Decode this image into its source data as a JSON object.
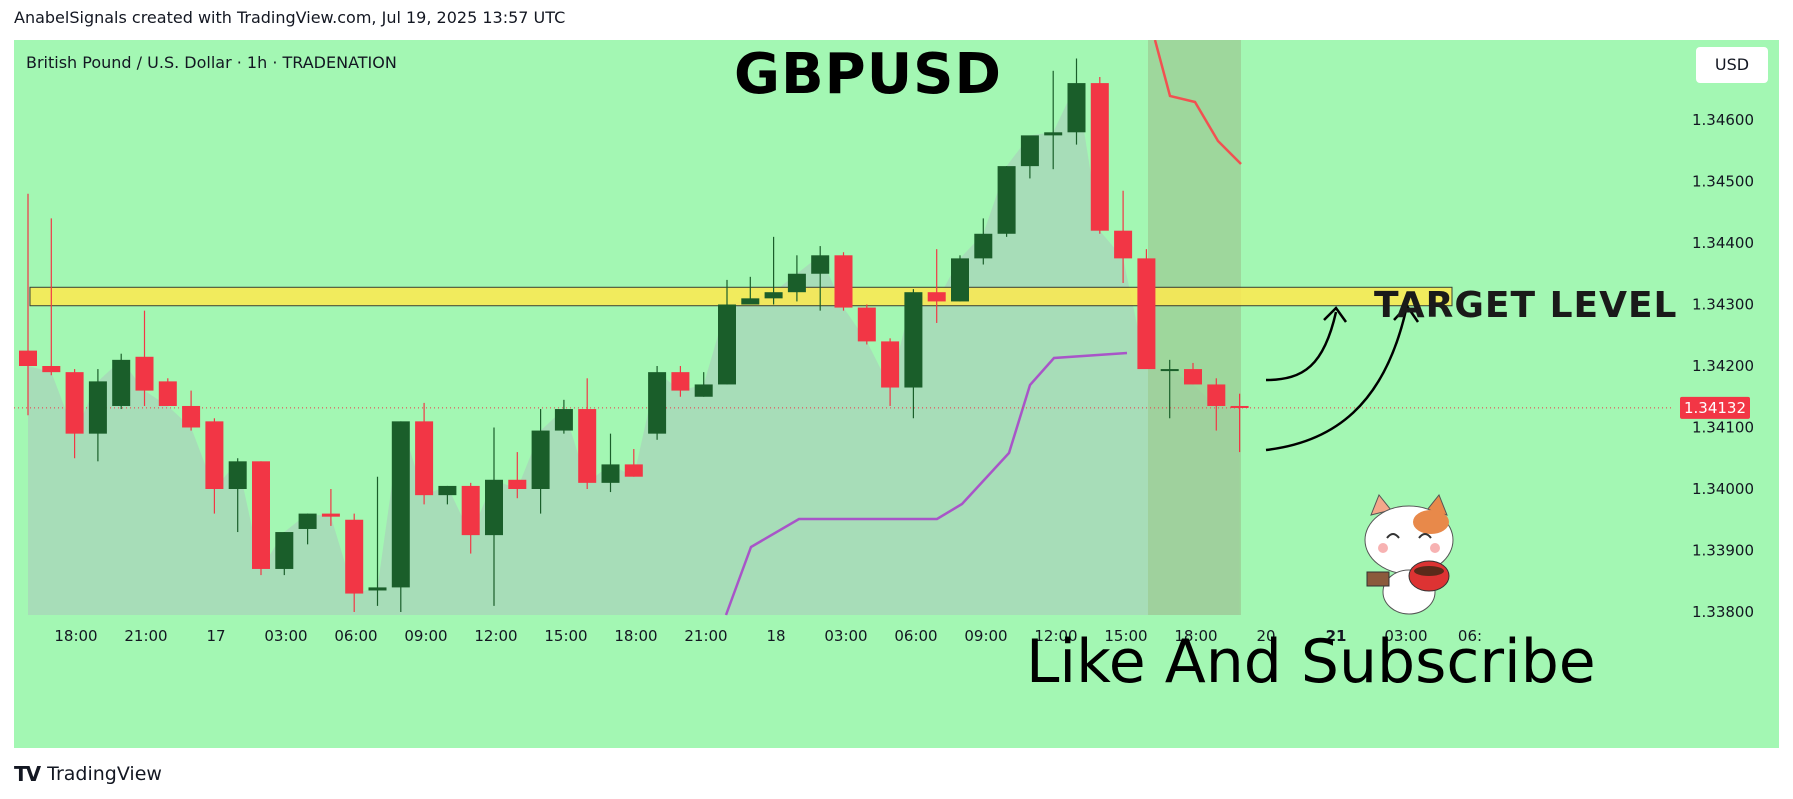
{
  "caption": "AnabelSignals created with TradingView.com, Jul 19, 2025 13:57 UTC",
  "symbol_info": "British Pound / U.S. Dollar · 1h · TRADENATION",
  "title": "GBPUSD",
  "currency_label": "USD",
  "target_label": "TARGET LEVEL",
  "subscribe_text": "Like And Subscribe",
  "footer_brand": "TradingView",
  "colors": {
    "background": "#a3f7b3",
    "bull": "#1a5e2a",
    "bear": "#f23645",
    "target_zone": "#ffe94f",
    "support_line": "#a855c8",
    "resistance_line": "#f25151",
    "price_label_bg": "#f23645"
  },
  "chart_data": {
    "type": "candlestick",
    "interval": "1h",
    "ylim": [
      1.338,
      1.3468
    ],
    "y_ticks": [
      "1.34600",
      "1.34500",
      "1.34400",
      "1.34300",
      "1.34200",
      "1.34100",
      "1.34000",
      "1.33900",
      "1.33800"
    ],
    "x_ticks": [
      "18:00",
      "21:00",
      "17",
      "03:00",
      "06:00",
      "09:00",
      "12:00",
      "15:00",
      "18:00",
      "21:00",
      "18",
      "03:00",
      "06:00",
      "09:00",
      "12:00",
      "15:00",
      "18:00",
      "20",
      "21",
      "03:00",
      "06:"
    ],
    "last_price": "1.34132",
    "target_zone": [
      1.34298,
      1.34328
    ],
    "candles": [
      {
        "o": 1.34225,
        "h": 1.3448,
        "l": 1.3412,
        "c": 1.342
      },
      {
        "o": 1.342,
        "h": 1.3444,
        "l": 1.34185,
        "c": 1.3419
      },
      {
        "o": 1.3419,
        "h": 1.34195,
        "l": 1.3405,
        "c": 1.3409
      },
      {
        "o": 1.3409,
        "h": 1.34195,
        "l": 1.34045,
        "c": 1.34175
      },
      {
        "o": 1.34135,
        "h": 1.3422,
        "l": 1.3413,
        "c": 1.3421
      },
      {
        "o": 1.34215,
        "h": 1.3429,
        "l": 1.34135,
        "c": 1.3416
      },
      {
        "o": 1.34175,
        "h": 1.3418,
        "l": 1.34135,
        "c": 1.34135
      },
      {
        "o": 1.34135,
        "h": 1.3416,
        "l": 1.34095,
        "c": 1.341
      },
      {
        "o": 1.3411,
        "h": 1.34115,
        "l": 1.3396,
        "c": 1.34
      },
      {
        "o": 1.34,
        "h": 1.3405,
        "l": 1.3393,
        "c": 1.34045
      },
      {
        "o": 1.34045,
        "h": 1.34045,
        "l": 1.3386,
        "c": 1.3387
      },
      {
        "o": 1.3387,
        "h": 1.3393,
        "l": 1.3386,
        "c": 1.3393
      },
      {
        "o": 1.33935,
        "h": 1.3396,
        "l": 1.3391,
        "c": 1.3396
      },
      {
        "o": 1.3396,
        "h": 1.34,
        "l": 1.3394,
        "c": 1.33955
      },
      {
        "o": 1.3395,
        "h": 1.3396,
        "l": 1.338,
        "c": 1.3383
      },
      {
        "o": 1.33835,
        "h": 1.3402,
        "l": 1.3381,
        "c": 1.3384
      },
      {
        "o": 1.3384,
        "h": 1.3411,
        "l": 1.338,
        "c": 1.3411
      },
      {
        "o": 1.3411,
        "h": 1.3414,
        "l": 1.33975,
        "c": 1.3399
      },
      {
        "o": 1.3399,
        "h": 1.34005,
        "l": 1.33975,
        "c": 1.34005
      },
      {
        "o": 1.34005,
        "h": 1.3401,
        "l": 1.33895,
        "c": 1.33925
      },
      {
        "o": 1.33925,
        "h": 1.341,
        "l": 1.3381,
        "c": 1.34015
      },
      {
        "o": 1.34015,
        "h": 1.3406,
        "l": 1.33985,
        "c": 1.34
      },
      {
        "o": 1.34,
        "h": 1.3413,
        "l": 1.3396,
        "c": 1.34095
      },
      {
        "o": 1.34095,
        "h": 1.34145,
        "l": 1.3409,
        "c": 1.3413
      },
      {
        "o": 1.3413,
        "h": 1.3418,
        "l": 1.34,
        "c": 1.3401
      },
      {
        "o": 1.3401,
        "h": 1.3409,
        "l": 1.33995,
        "c": 1.3404
      },
      {
        "o": 1.3404,
        "h": 1.34065,
        "l": 1.3402,
        "c": 1.3402
      },
      {
        "o": 1.3409,
        "h": 1.342,
        "l": 1.3408,
        "c": 1.3419
      },
      {
        "o": 1.3419,
        "h": 1.342,
        "l": 1.3415,
        "c": 1.3416
      },
      {
        "o": 1.3415,
        "h": 1.3419,
        "l": 1.3415,
        "c": 1.3417
      },
      {
        "o": 1.3417,
        "h": 1.3434,
        "l": 1.3417,
        "c": 1.343
      },
      {
        "o": 1.343,
        "h": 1.34345,
        "l": 1.343,
        "c": 1.3431
      },
      {
        "o": 1.3431,
        "h": 1.3441,
        "l": 1.343,
        "c": 1.3432
      },
      {
        "o": 1.3432,
        "h": 1.3438,
        "l": 1.34305,
        "c": 1.3435
      },
      {
        "o": 1.3435,
        "h": 1.34395,
        "l": 1.3429,
        "c": 1.3438
      },
      {
        "o": 1.3438,
        "h": 1.34385,
        "l": 1.3429,
        "c": 1.34295
      },
      {
        "o": 1.34295,
        "h": 1.343,
        "l": 1.34235,
        "c": 1.3424
      },
      {
        "o": 1.3424,
        "h": 1.34245,
        "l": 1.34135,
        "c": 1.34165
      },
      {
        "o": 1.34165,
        "h": 1.34325,
        "l": 1.34115,
        "c": 1.3432
      },
      {
        "o": 1.3432,
        "h": 1.3439,
        "l": 1.3427,
        "c": 1.34305
      },
      {
        "o": 1.34305,
        "h": 1.3438,
        "l": 1.34305,
        "c": 1.34375
      },
      {
        "o": 1.34375,
        "h": 1.3444,
        "l": 1.34365,
        "c": 1.34415
      },
      {
        "o": 1.34415,
        "h": 1.34525,
        "l": 1.3441,
        "c": 1.34525
      },
      {
        "o": 1.34525,
        "h": 1.3457,
        "l": 1.34505,
        "c": 1.34575
      },
      {
        "o": 1.34575,
        "h": 1.3468,
        "l": 1.3452,
        "c": 1.3458
      },
      {
        "o": 1.3458,
        "h": 1.347,
        "l": 1.3456,
        "c": 1.3466
      },
      {
        "o": 1.3466,
        "h": 1.3467,
        "l": 1.34415,
        "c": 1.3442
      },
      {
        "o": 1.3442,
        "h": 1.34485,
        "l": 1.34335,
        "c": 1.34375
      },
      {
        "o": 1.34375,
        "h": 1.3439,
        "l": 1.342,
        "c": 1.34195
      },
      {
        "o": 1.34195,
        "h": 1.3421,
        "l": 1.34115,
        "c": 1.34195
      },
      {
        "o": 1.34195,
        "h": 1.34205,
        "l": 1.3417,
        "c": 1.3417
      },
      {
        "o": 1.3417,
        "h": 1.3418,
        "l": 1.34095,
        "c": 1.34135
      },
      {
        "o": 1.34135,
        "h": 1.34155,
        "l": 1.3406,
        "c": 1.34132
      }
    ]
  }
}
